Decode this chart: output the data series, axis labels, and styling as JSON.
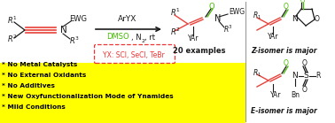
{
  "fig_width": 3.78,
  "fig_height": 1.39,
  "dpi": 100,
  "background_color": "#ffffff",
  "yellow_color": "#ffff00",
  "red_color": "#e8423a",
  "green_color": "#44bb00",
  "black_color": "#1a1a1a",
  "pink_red": "#ee3333",
  "bullet_lines": [
    "* No Metal Catalysts",
    "* No External Oxidants",
    "* No Additives",
    "* New Oxyfunctionalization Mode of Ynamides",
    "* Mild Conditions"
  ]
}
